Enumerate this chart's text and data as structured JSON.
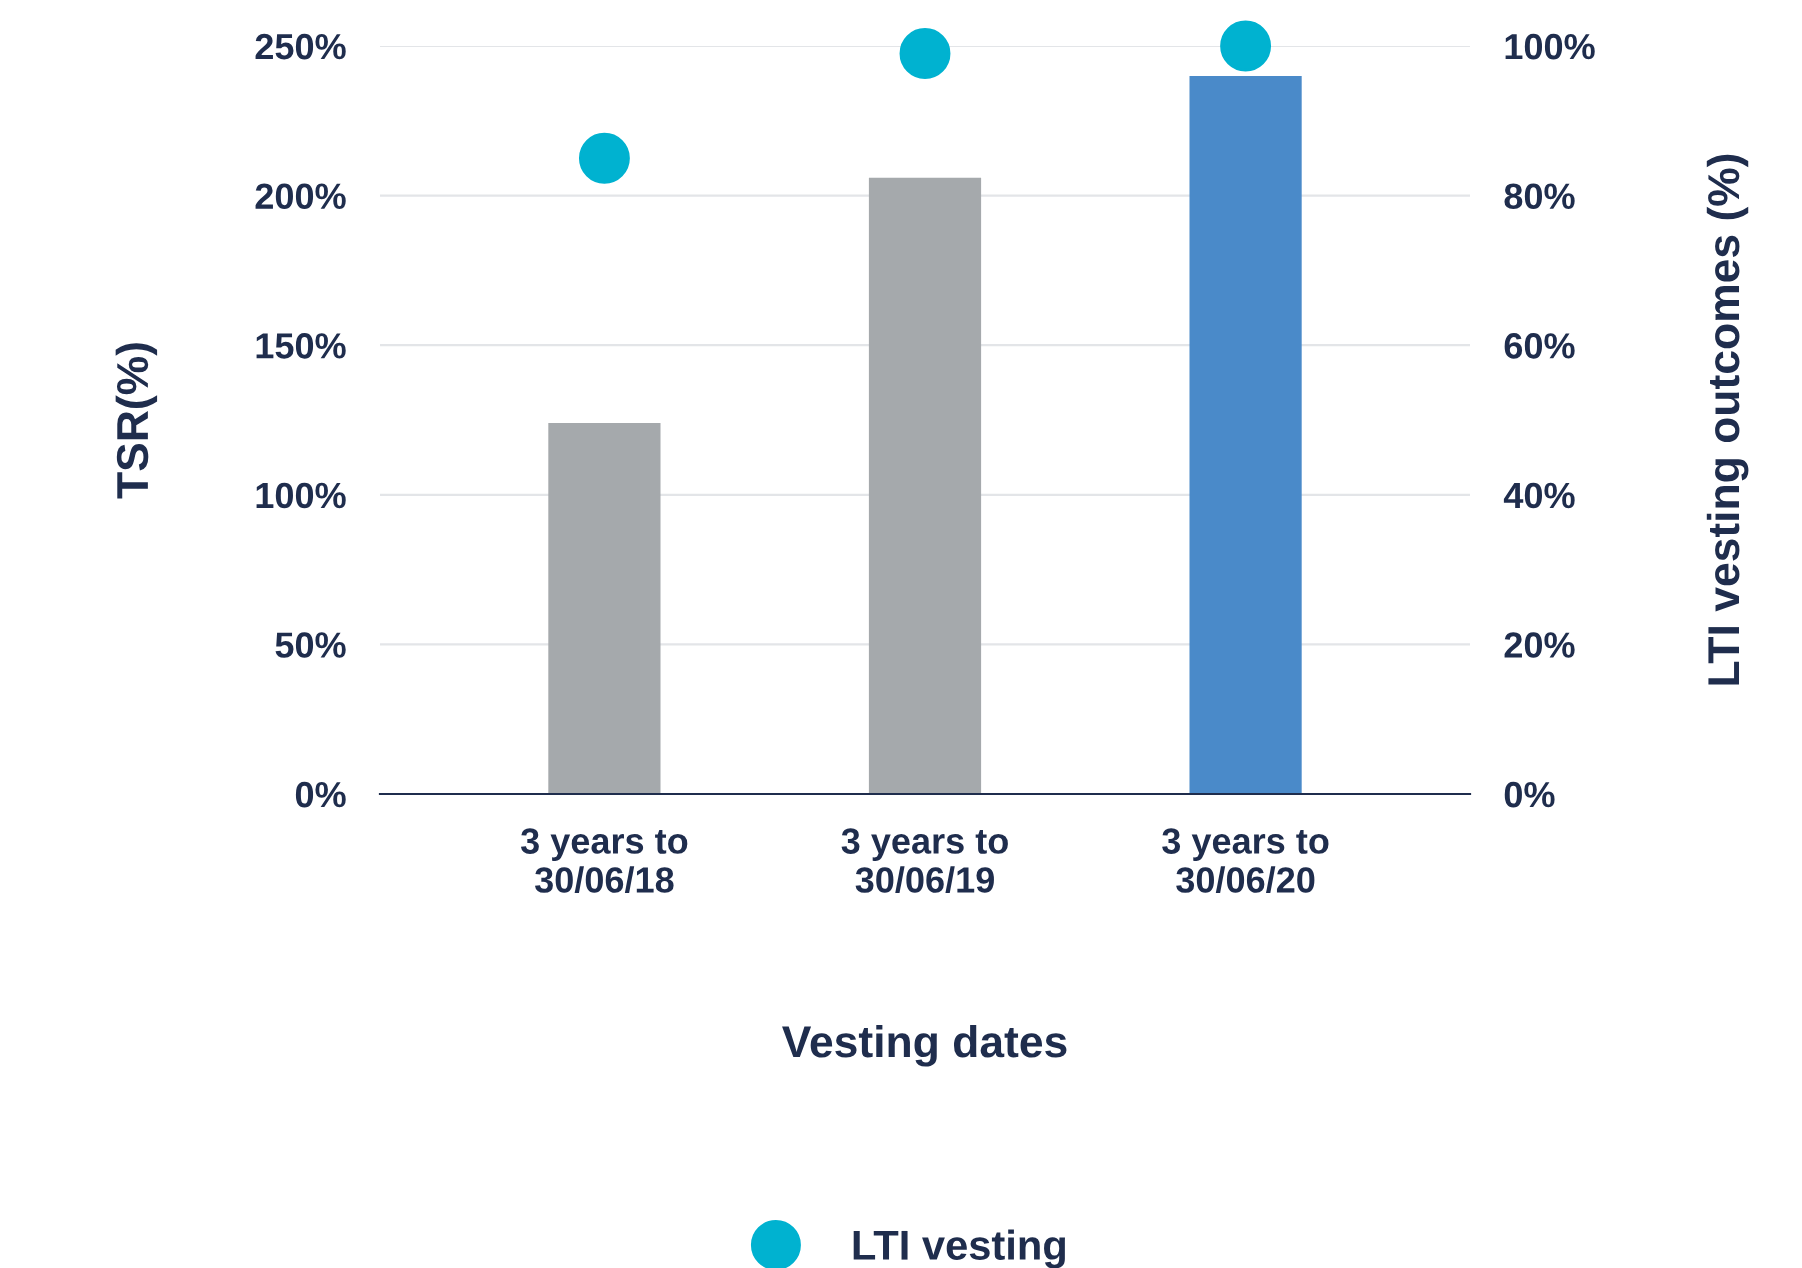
{
  "chart_data": {
    "type": "bar",
    "xlabel": "Vesting dates",
    "ylabel": "TSR(%)",
    "y2label": "LTI vesting outcomes (%)",
    "categories": [
      "3 years to\n30/06/18",
      "3 years to\n30/06/19",
      "3 years to\n30/06/20"
    ],
    "series": [
      {
        "colors": [
          "#a5a9ac",
          "#a5a9ac",
          "#4a8ac9"
        ],
        "color": "#4a8ac9",
        "values": [
          124,
          206,
          240
        ]
      },
      {
        "type": "scatter",
        "name": "LTI vesting",
        "color": "#00b2d0",
        "axis": "y2",
        "values": [
          85,
          99,
          100
        ]
      }
    ],
    "ylim": [
      0,
      250
    ],
    "yticks": [
      {
        "value": 0,
        "label": "0%"
      },
      {
        "value": 50,
        "label": "50%"
      },
      {
        "value": 100,
        "label": "100%"
      },
      {
        "value": 150,
        "label": "150%"
      },
      {
        "value": 200,
        "label": "200%"
      },
      {
        "value": 250,
        "label": "250%"
      }
    ],
    "y2lim": [
      0,
      100
    ],
    "y2ticks": [
      {
        "value": 0,
        "label": "0%"
      },
      {
        "value": 20,
        "label": "20%"
      },
      {
        "value": 40,
        "label": "40%"
      },
      {
        "value": 60,
        "label": "60%"
      },
      {
        "value": 80,
        "label": "80%"
      },
      {
        "value": 100,
        "label": "100%"
      }
    ],
    "grid": "y",
    "legend": "bottom",
    "marker": "circle"
  }
}
